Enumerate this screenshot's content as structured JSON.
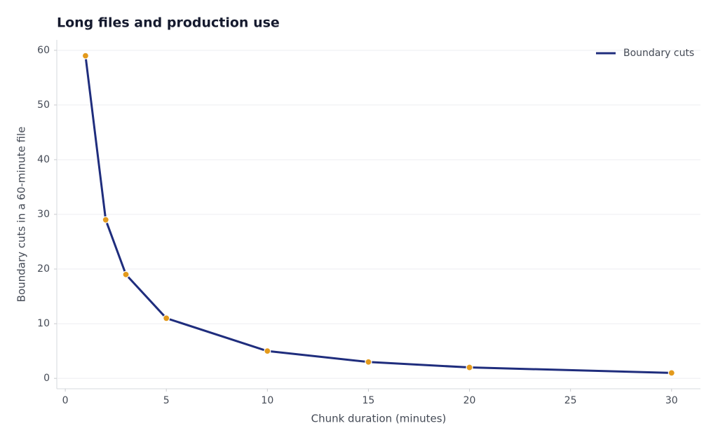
{
  "chart_data": {
    "type": "line",
    "title": "Long files and production use",
    "x_label": "Chunk duration (minutes)",
    "y_label": "Boundary cuts in a 60-minute file",
    "x": [
      1,
      2,
      3,
      5,
      10,
      15,
      20,
      30
    ],
    "series": [
      {
        "name": "Boundary cuts",
        "color": "#1f2d7d",
        "marker_color": "#e39a1c",
        "values": [
          59,
          29,
          19,
          11,
          5,
          3,
          2,
          1
        ]
      }
    ],
    "xlim": [
      -0.42,
      31.43
    ],
    "ylim": [
      -1.9,
      61.9
    ],
    "xticks": [
      0,
      5,
      10,
      15,
      20,
      25,
      30
    ],
    "yticks": [
      0,
      10,
      20,
      30,
      40,
      50,
      60
    ],
    "grid": true,
    "legend": "upper right"
  }
}
